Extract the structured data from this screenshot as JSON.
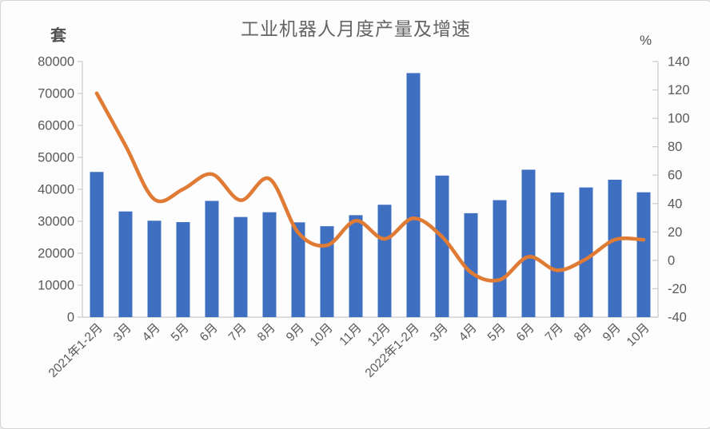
{
  "title": "工业机器人月度产量及增速",
  "left_axis_unit": "套",
  "right_axis_unit": "%",
  "chart_data": {
    "type": "bar+line combo",
    "title": "工业机器人月度产量及增速",
    "categories": [
      "2021年1-2月",
      "3月",
      "4月",
      "5月",
      "6月",
      "7月",
      "8月",
      "9月",
      "10月",
      "11月",
      "12月",
      "2022年1-2月",
      "3月",
      "4月",
      "5月",
      "6月",
      "7月",
      "8月",
      "9月",
      "10月"
    ],
    "series": [
      {
        "name": "产量",
        "type": "bar",
        "axis": "left",
        "unit": "套",
        "color": "#3e6fc0",
        "values": [
          45442,
          33073,
          30178,
          29743,
          36383,
          31342,
          32828,
          29661,
          28460,
          31915,
          35175,
          76381,
          44306,
          32534,
          36616,
          46144,
          39023,
          40593,
          43009,
          39073
        ]
      },
      {
        "name": "增速",
        "type": "line",
        "axis": "right",
        "unit": "%",
        "color": "#e07b35",
        "smooth": true,
        "values": [
          117.6,
          80.8,
          43.0,
          50.1,
          60.7,
          42.3,
          57.4,
          19.5,
          10.6,
          27.9,
          15.1,
          29.6,
          16.6,
          -8.4,
          -13.7,
          2.5,
          -7.0,
          1.0,
          14.5,
          14.5
        ]
      }
    ],
    "left_axis": {
      "unit": "套",
      "min": 0,
      "max": 80000,
      "step": 10000
    },
    "right_axis": {
      "unit": "%",
      "min": -40,
      "max": 140,
      "step": 20
    },
    "grid": false,
    "legend": "none",
    "x_label_rotation": 45,
    "axis_color": "#c9c9c9",
    "label_color": "#595959"
  }
}
